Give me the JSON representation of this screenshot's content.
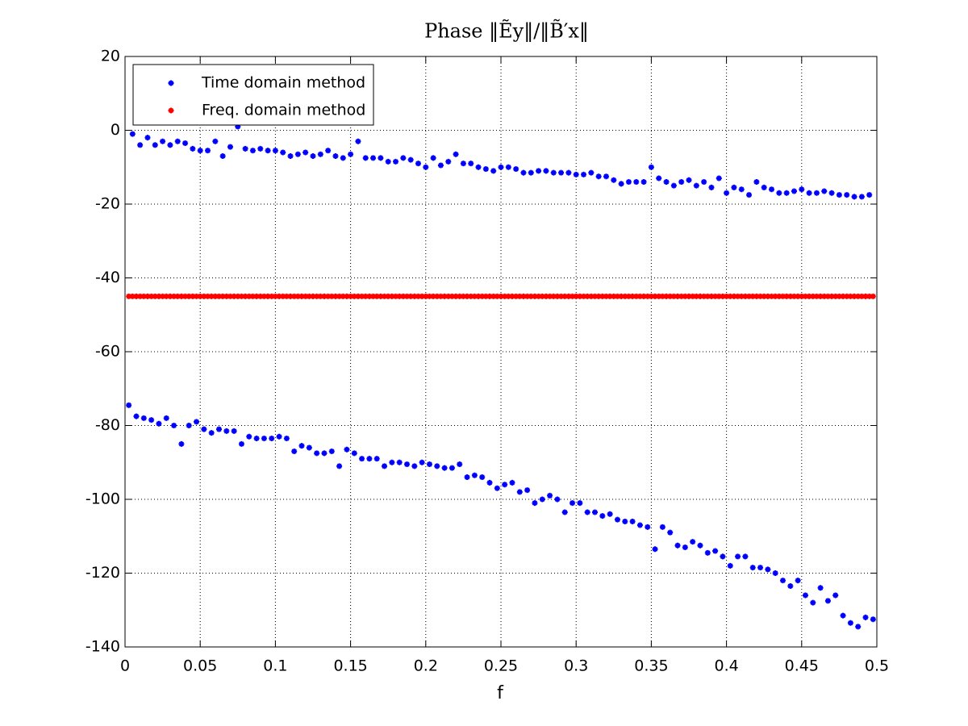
{
  "chart_data": {
    "type": "scatter",
    "title": "Phase ‖Ẽy‖/‖B̃′x‖",
    "x_label": "f",
    "xlim": [
      0,
      0.5
    ],
    "xticks": [
      0,
      0.05,
      0.1,
      0.15,
      0.2,
      0.25,
      0.3,
      0.35,
      0.4,
      0.45,
      0.5
    ],
    "ylim": [
      -140,
      20
    ],
    "yticks": [
      20,
      0,
      -20,
      -40,
      -60,
      -80,
      -100,
      -120,
      -140
    ],
    "grid": true,
    "legend": "upper-left",
    "x": [
      0.0025,
      0.005,
      0.0075,
      0.01,
      0.0125,
      0.015,
      0.0175,
      0.02,
      0.0225,
      0.025,
      0.0275,
      0.03,
      0.0325,
      0.035,
      0.0375,
      0.04,
      0.0425,
      0.045,
      0.0475,
      0.05,
      0.0525,
      0.055,
      0.0575,
      0.06,
      0.0625,
      0.065,
      0.0675,
      0.07,
      0.0725,
      0.075,
      0.0775,
      0.08,
      0.0825,
      0.085,
      0.0875,
      0.09,
      0.0925,
      0.095,
      0.0975,
      0.1,
      0.1025,
      0.105,
      0.1075,
      0.11,
      0.1125,
      0.115,
      0.1175,
      0.12,
      0.1225,
      0.125,
      0.1275,
      0.13,
      0.1325,
      0.135,
      0.1375,
      0.14,
      0.1425,
      0.145,
      0.1475,
      0.15,
      0.1525,
      0.155,
      0.1575,
      0.16,
      0.1625,
      0.165,
      0.1675,
      0.17,
      0.1725,
      0.175,
      0.1775,
      0.18,
      0.1825,
      0.185,
      0.1875,
      0.19,
      0.1925,
      0.195,
      0.1975,
      0.2,
      0.2025,
      0.205,
      0.2075,
      0.21,
      0.2125,
      0.215,
      0.2175,
      0.22,
      0.2225,
      0.225,
      0.2275,
      0.23,
      0.2325,
      0.235,
      0.2375,
      0.24,
      0.2425,
      0.245,
      0.2475,
      0.25,
      0.2525,
      0.255,
      0.2575,
      0.26,
      0.2625,
      0.265,
      0.2675,
      0.27,
      0.2725,
      0.275,
      0.2775,
      0.28,
      0.2825,
      0.285,
      0.2875,
      0.29,
      0.2925,
      0.295,
      0.2975,
      0.3,
      0.3025,
      0.305,
      0.3075,
      0.31,
      0.3125,
      0.315,
      0.3175,
      0.32,
      0.3225,
      0.325,
      0.3275,
      0.33,
      0.3325,
      0.335,
      0.3375,
      0.34,
      0.3425,
      0.345,
      0.3475,
      0.35,
      0.3525,
      0.355,
      0.3575,
      0.36,
      0.3625,
      0.365,
      0.3675,
      0.37,
      0.3725,
      0.375,
      0.3775,
      0.38,
      0.3825,
      0.385,
      0.3875,
      0.39,
      0.3925,
      0.395,
      0.3975,
      0.4,
      0.4025,
      0.405,
      0.4075,
      0.41,
      0.4125,
      0.415,
      0.4175,
      0.42,
      0.4225,
      0.425,
      0.4275,
      0.43,
      0.4325,
      0.435,
      0.4375,
      0.44,
      0.4425,
      0.445,
      0.4475,
      0.45,
      0.4525,
      0.455,
      0.4575,
      0.46,
      0.4625,
      0.465,
      0.4675,
      0.47,
      0.4725,
      0.475,
      0.4775,
      0.48,
      0.4825,
      0.485,
      0.4875,
      0.49,
      0.4925,
      0.495,
      0.4975
    ],
    "series": [
      {
        "name": "Time domain method",
        "color": "#0000ff",
        "values": [
          -74.5,
          -1,
          -77.5,
          -4,
          -78,
          -2,
          -78.5,
          -4,
          -79.5,
          -3,
          -78,
          -4,
          -80,
          -3,
          -85,
          -3.5,
          -80,
          -5,
          -79,
          -5.5,
          -81,
          -5.5,
          -82,
          -3,
          -81,
          -7,
          -81.5,
          -4.5,
          -81.5,
          1,
          -85,
          -5,
          -83,
          -5.5,
          -83.5,
          -5,
          -83.5,
          -5.5,
          -83.5,
          -5.5,
          -83,
          -6,
          -83.5,
          -7,
          -87,
          -6.5,
          -85.5,
          -6,
          -86,
          -7,
          -87.5,
          -6.5,
          -87.5,
          -5.5,
          -87,
          -7,
          -91,
          -7.5,
          -86.5,
          -6.5,
          -87.5,
          -3,
          -89,
          -7.5,
          -89,
          -7.5,
          -89,
          -7.5,
          -91,
          -8.5,
          -90,
          -8.5,
          -90,
          -7.5,
          -90.5,
          -8,
          -91,
          -9,
          -90,
          -10,
          -90.5,
          -7.5,
          -91,
          -9.5,
          -91.5,
          -8.5,
          -91.5,
          -6.5,
          -90.5,
          -9,
          -94,
          -9,
          -93.5,
          -10,
          -94,
          -10.5,
          -95.5,
          -11,
          -97,
          -10,
          -96,
          -10,
          -95.5,
          -10.5,
          -98,
          -11.5,
          -97.5,
          -11.5,
          -101,
          -11,
          -100,
          -11,
          -99,
          -11.5,
          -100,
          -11.5,
          -103.5,
          -11.5,
          -101,
          -12,
          -101,
          -12,
          -103.5,
          -11.5,
          -103.5,
          -12.5,
          -104.5,
          -12.5,
          -104,
          -13.5,
          -105.5,
          -14.5,
          -106,
          -14,
          -106,
          -14,
          -107,
          -14,
          -107.5,
          -10,
          -113.5,
          -13,
          -107.5,
          -14,
          -109,
          -15,
          -112.5,
          -14,
          -113,
          -13.5,
          -111.5,
          -15,
          -112.5,
          -14,
          -114.5,
          -15.5,
          -114,
          -13,
          -115.5,
          -17,
          -118,
          -15.5,
          -115.5,
          -16,
          -115.5,
          -17.5,
          -118.5,
          -14,
          -118.5,
          -15.5,
          -119,
          -16,
          -120,
          -17,
          -122,
          -17,
          -123.5,
          -16.5,
          -122,
          -16,
          -126,
          -17,
          -128,
          -17,
          -124,
          -16.5,
          -127.5,
          -17,
          -126,
          -17.5,
          -131.5,
          -17.5,
          -133.5,
          -18,
          -134.5,
          -18,
          -132,
          -17.5,
          -132.5
        ]
      },
      {
        "name": "Freq. domain method",
        "color": "#ff0000",
        "values": [
          -45,
          -45,
          -45,
          -45,
          -45,
          -45,
          -45,
          -45,
          -45,
          -45,
          -45,
          -45,
          -45,
          -45,
          -45,
          -45,
          -45,
          -45,
          -45,
          -45,
          -45,
          -45,
          -45,
          -45,
          -45,
          -45,
          -45,
          -45,
          -45,
          -45,
          -45,
          -45,
          -45,
          -45,
          -45,
          -45,
          -45,
          -45,
          -45,
          -45,
          -45,
          -45,
          -45,
          -45,
          -45,
          -45,
          -45,
          -45,
          -45,
          -45,
          -45,
          -45,
          -45,
          -45,
          -45,
          -45,
          -45,
          -45,
          -45,
          -45,
          -45,
          -45,
          -45,
          -45,
          -45,
          -45,
          -45,
          -45,
          -45,
          -45,
          -45,
          -45,
          -45,
          -45,
          -45,
          -45,
          -45,
          -45,
          -45,
          -45,
          -45,
          -45,
          -45,
          -45,
          -45,
          -45,
          -45,
          -45,
          -45,
          -45,
          -45,
          -45,
          -45,
          -45,
          -45,
          -45,
          -45,
          -45,
          -45,
          -45,
          -45,
          -45,
          -45,
          -45,
          -45,
          -45,
          -45,
          -45,
          -45,
          -45,
          -45,
          -45,
          -45,
          -45,
          -45,
          -45,
          -45,
          -45,
          -45,
          -45,
          -45,
          -45,
          -45,
          -45,
          -45,
          -45,
          -45,
          -45,
          -45,
          -45,
          -45,
          -45,
          -45,
          -45,
          -45,
          -45,
          -45,
          -45,
          -45,
          -45,
          -45,
          -45,
          -45,
          -45,
          -45,
          -45,
          -45,
          -45,
          -45,
          -45,
          -45,
          -45,
          -45,
          -45,
          -45,
          -45,
          -45,
          -45,
          -45,
          -45,
          -45,
          -45,
          -45,
          -45,
          -45,
          -45,
          -45,
          -45,
          -45,
          -45,
          -45,
          -45,
          -45,
          -45,
          -45,
          -45,
          -45,
          -45,
          -45,
          -45,
          -45,
          -45,
          -45,
          -45,
          -45,
          -45,
          -45,
          -45,
          -45,
          -45,
          -45,
          -45,
          -45,
          -45,
          -45,
          -45,
          -45,
          -45,
          -45
        ]
      }
    ]
  }
}
